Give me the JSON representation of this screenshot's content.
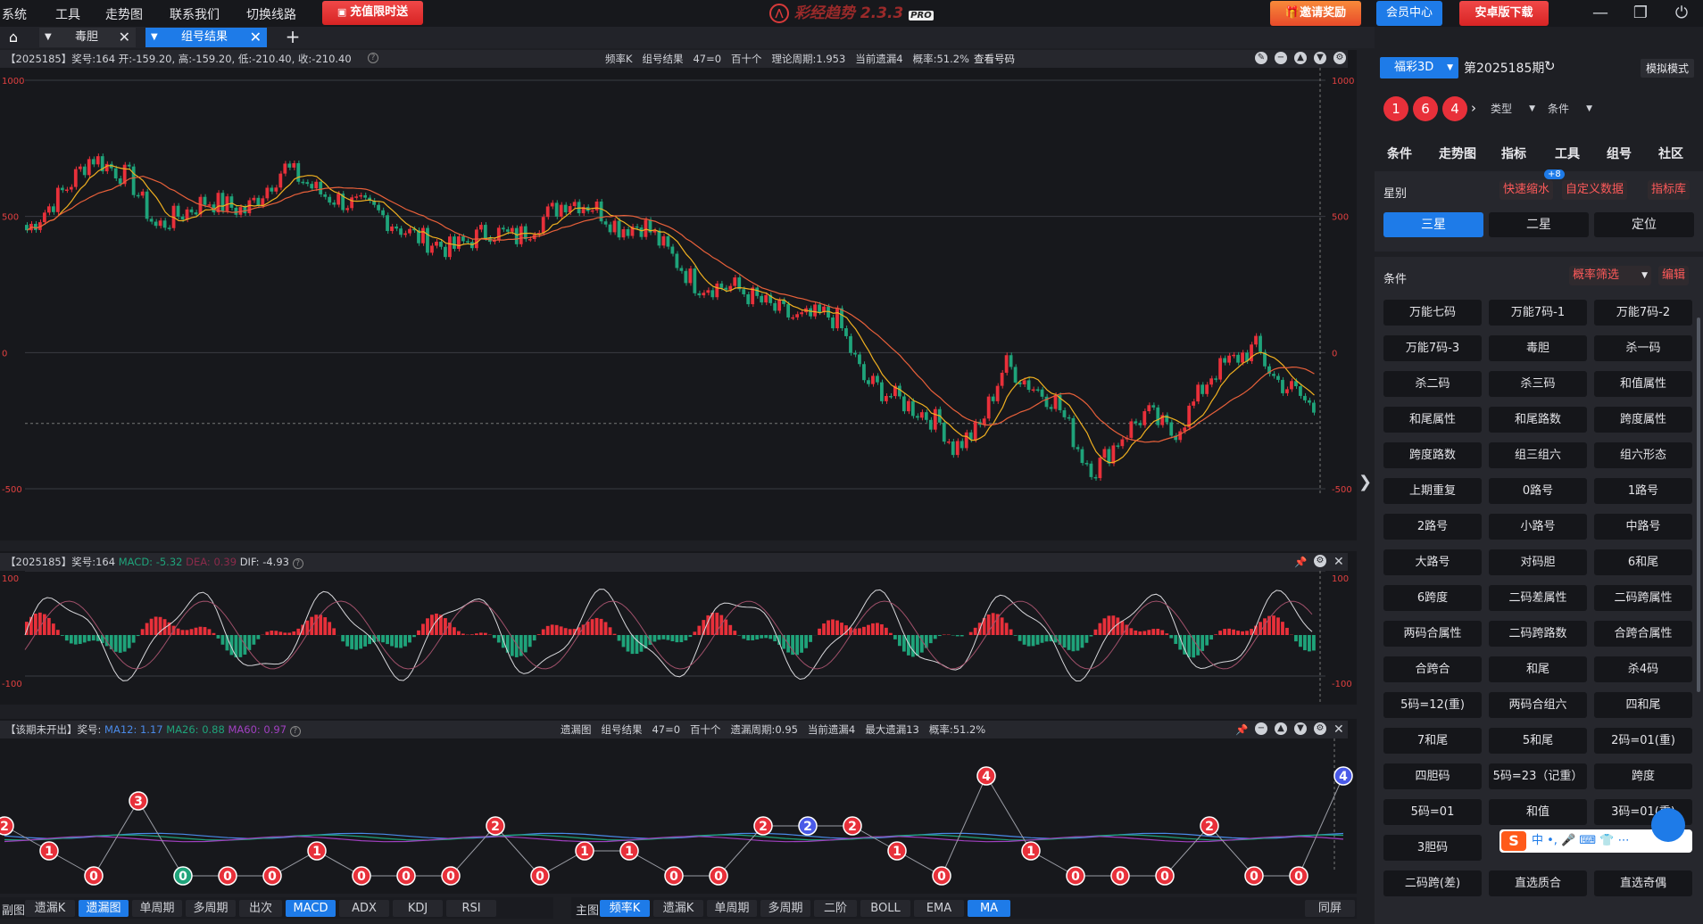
{
  "menu": {
    "items": [
      "系统",
      "工具",
      "走势图",
      "联系我们",
      "切换线路"
    ],
    "promo": "充值限时送",
    "app_title": "彩经趋势 2.3.3",
    "app_badge": "PRO",
    "invite": "邀请奖励",
    "member": "会员中心",
    "android": "安卓版下载"
  },
  "tabs": [
    {
      "label": "毒胆"
    },
    {
      "label": "组号结果"
    }
  ],
  "panel1": {
    "info_left": "【2025185】奖号:164 开:-159.20, 高:-159.20, 低:-210.40, 收:-210.40",
    "info_mid": [
      "频率K",
      "组号结果",
      "47=0",
      "百十个",
      "理论周期:1.953",
      "当前遗漏4",
      "概率:51.2%"
    ],
    "view_btn": "查看号码",
    "yticks": [
      "1000",
      "500",
      "0",
      "-500"
    ]
  },
  "panel2": {
    "info_prefix": "【2025185】奖号:164",
    "macd": "MACD: -5.32",
    "dea": "DEA: 0.39",
    "dif": "DIF: -4.93",
    "yticks": [
      "100",
      "-100"
    ]
  },
  "panel3": {
    "info_prefix": "【该期未开出】奖号:",
    "ma12": "MA12: 1.17",
    "ma26": "MA26: 0.88",
    "ma60": "MA60: 0.97",
    "info_mid": [
      "遗漏图",
      "组号结果",
      "47=0",
      "百十个",
      "遗漏周期:0.95",
      "当前遗漏4",
      "最大遗漏13",
      "概率:51.2%"
    ]
  },
  "miss_points": [
    2,
    1,
    0,
    3,
    0,
    0,
    0,
    1,
    0,
    0,
    0,
    2,
    0,
    1,
    1,
    0,
    0,
    2,
    2,
    2,
    1,
    0,
    4,
    1,
    0,
    0,
    0,
    2,
    0,
    0,
    4
  ],
  "bottom_left": {
    "label": "副图",
    "items": [
      "遗漏K",
      "遗漏图",
      "单周期",
      "多周期",
      "出次",
      "MACD",
      "ADX",
      "KDJ",
      "RSI"
    ],
    "active": [
      "遗漏图",
      "MACD"
    ]
  },
  "bottom_right": {
    "label": "主图",
    "items": [
      "频率K",
      "遗漏K",
      "单周期",
      "多周期",
      "二阶",
      "BOLL",
      "EMA",
      "MA"
    ],
    "active": [
      "频率K",
      "MA"
    ],
    "sync": "同屏"
  },
  "right": {
    "lottery": "福彩3D",
    "period": "第2025185期",
    "mode": "模拟模式",
    "balls": [
      "1",
      "6",
      "4"
    ],
    "type_dd": "类型",
    "cond_dd": "条件",
    "tabs": [
      "条件",
      "走势图",
      "指标",
      "工具",
      "组号",
      "社区"
    ],
    "star_label": "星别",
    "badge": "+8",
    "links": [
      "快速缩水",
      "自定义数据",
      "指标库"
    ],
    "segs": [
      "三星",
      "二星",
      "定位"
    ],
    "cond_label": "条件",
    "filter": "概率筛选",
    "edit": "编辑",
    "conditions": [
      "万能七码",
      "万能7码-1",
      "万能7码-2",
      "万能7码-3",
      "毒胆",
      "杀一码",
      "杀二码",
      "杀三码",
      "和值属性",
      "和尾属性",
      "和尾路数",
      "跨度属性",
      "跨度路数",
      "组三组六",
      "组六形态",
      "上期重复",
      "0路号",
      "1路号",
      "2路号",
      "小路号",
      "中路号",
      "大路号",
      "对码胆",
      "6和尾",
      "6跨度",
      "二码差属性",
      "二码跨属性",
      "两码合属性",
      "二码跨路数",
      "合跨合属性",
      "合跨合",
      "和尾",
      "杀4码",
      "5码=12(重)",
      "两码合组六",
      "四和尾",
      "7和尾",
      "5和尾",
      "2码=01(重)",
      "四胆码",
      "5码=23（记重）",
      "跨度",
      "5码=01",
      "和值",
      "3码=01(重)",
      "3胆码",
      "",
      "",
      "二码跨(差)",
      "直选质合",
      "直选奇偶"
    ]
  },
  "colors": {
    "up": "#e8303a",
    "down": "#1fa37a",
    "accent": "#1e7be8"
  }
}
